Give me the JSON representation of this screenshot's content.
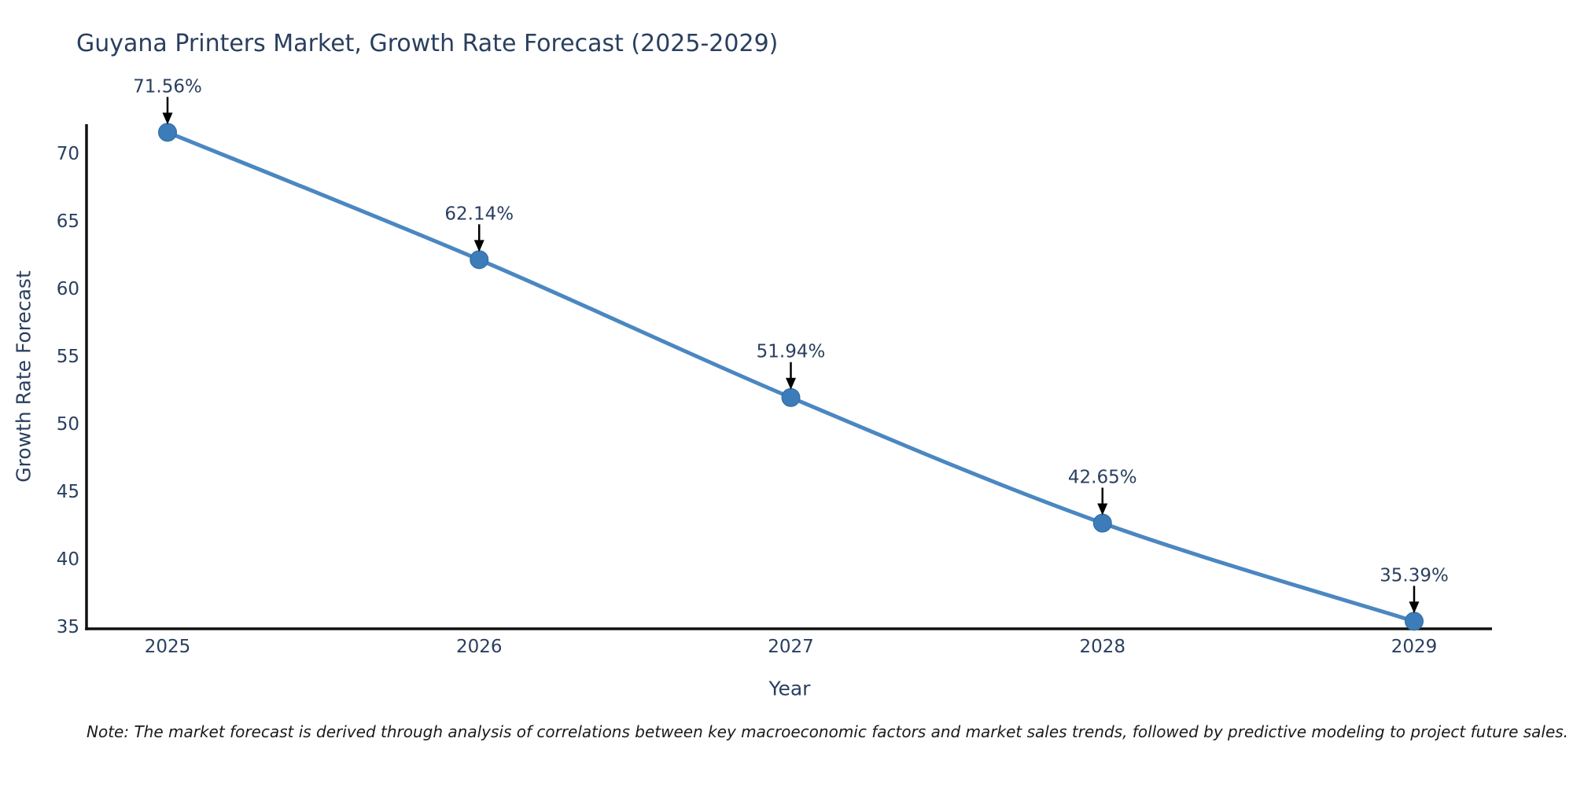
{
  "chart_data": {
    "type": "line",
    "title": "Guyana Printers Market, Growth Rate Forecast (2025-2029)",
    "xlabel": "Year",
    "ylabel": "Growth Rate Forecast",
    "x": [
      2025,
      2026,
      2027,
      2028,
      2029
    ],
    "values": [
      71.56,
      62.14,
      51.94,
      42.65,
      35.39
    ],
    "point_labels": [
      "71.56%",
      "62.14%",
      "51.94%",
      "42.65%",
      "35.39%"
    ],
    "x_tick_labels": [
      "2025",
      "2026",
      "2027",
      "2028",
      "2029"
    ],
    "y_ticks": [
      35,
      40,
      45,
      50,
      55,
      60,
      65,
      70
    ],
    "ylim": [
      34.83,
      72.16
    ],
    "grid": false,
    "legend_position": "none",
    "line_shape": "spline",
    "colors": {
      "line": "#4b87c1",
      "marker": "#3c7cb8",
      "marker_edge": "#2f6ba3",
      "text": "#2a3f5f",
      "axis": "#111111",
      "annotation_arrow": "#000000"
    }
  },
  "note": "Note: The market forecast is derived through analysis of correlations between key macroeconomic factors and market sales trends, followed by predictive modeling to project future sales."
}
